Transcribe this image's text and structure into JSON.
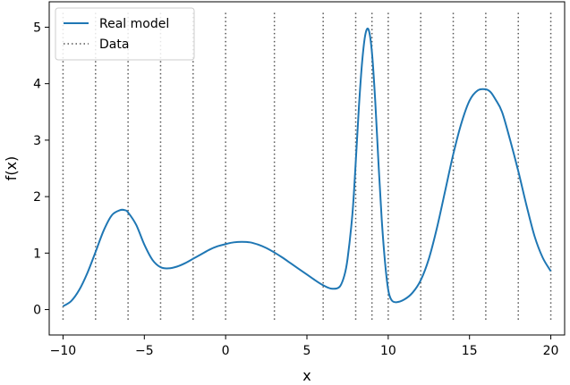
{
  "chart_data": {
    "type": "line",
    "xlabel": "x",
    "ylabel": "f(x)",
    "xlim": [
      -10.85,
      20.85
    ],
    "ylim": [
      -0.45,
      5.45
    ],
    "xticks": [
      -10,
      -5,
      0,
      5,
      10,
      15,
      20
    ],
    "xtick_labels": [
      "−10",
      "−5",
      "0",
      "5",
      "10",
      "15",
      "20"
    ],
    "yticks": [
      0,
      1,
      2,
      3,
      4,
      5
    ],
    "ytick_labels": [
      "0",
      "1",
      "2",
      "3",
      "4",
      "5"
    ],
    "grid": false,
    "legend": {
      "placement": "top-left",
      "entries": [
        {
          "label": "Real model",
          "style": "solid",
          "color": "#1f77b4"
        },
        {
          "label": "Data",
          "style": "dotted",
          "color": "#555555"
        }
      ]
    },
    "series": [
      {
        "name": "Real model",
        "style": "solid",
        "color": "#1f77b4",
        "x": [
          -10,
          -9.5,
          -9,
          -8.5,
          -8,
          -7.5,
          -7,
          -6.5,
          -6.2,
          -6,
          -5.5,
          -5,
          -4.5,
          -4,
          -3.5,
          -3,
          -2.5,
          -2,
          -1.5,
          -1,
          -0.5,
          0,
          0.5,
          1,
          1.5,
          2,
          2.5,
          3,
          3.5,
          4,
          4.5,
          5,
          5.5,
          6,
          6.5,
          7,
          7.3,
          7.5,
          7.8,
          8,
          8.2,
          8.4,
          8.6,
          8.8,
          9,
          9.2,
          9.4,
          9.6,
          9.8,
          10,
          10.2,
          10.5,
          11,
          11.5,
          12,
          12.5,
          13,
          13.5,
          14,
          14.5,
          15,
          15.5,
          16,
          16.3,
          16.6,
          17,
          17.5,
          18,
          18.5,
          19,
          19.5,
          20
        ],
        "y": [
          0.06,
          0.15,
          0.35,
          0.65,
          1.02,
          1.4,
          1.67,
          1.76,
          1.76,
          1.72,
          1.5,
          1.15,
          0.88,
          0.75,
          0.73,
          0.76,
          0.82,
          0.9,
          0.98,
          1.06,
          1.12,
          1.16,
          1.19,
          1.2,
          1.19,
          1.15,
          1.09,
          1.01,
          0.92,
          0.82,
          0.72,
          0.62,
          0.52,
          0.43,
          0.37,
          0.4,
          0.6,
          0.9,
          1.7,
          2.6,
          3.6,
          4.4,
          4.88,
          4.95,
          4.55,
          3.7,
          2.6,
          1.6,
          0.85,
          0.35,
          0.17,
          0.13,
          0.18,
          0.3,
          0.52,
          0.9,
          1.45,
          2.1,
          2.75,
          3.3,
          3.7,
          3.88,
          3.9,
          3.85,
          3.72,
          3.5,
          3.0,
          2.45,
          1.85,
          1.3,
          0.92,
          0.68
        ]
      },
      {
        "name": "Data",
        "style": "dotted",
        "color": "#555555",
        "x": [
          -10,
          -8,
          -6,
          -4,
          -2,
          0,
          3,
          6,
          8,
          9,
          10,
          12,
          14,
          16,
          18,
          20
        ]
      }
    ]
  }
}
